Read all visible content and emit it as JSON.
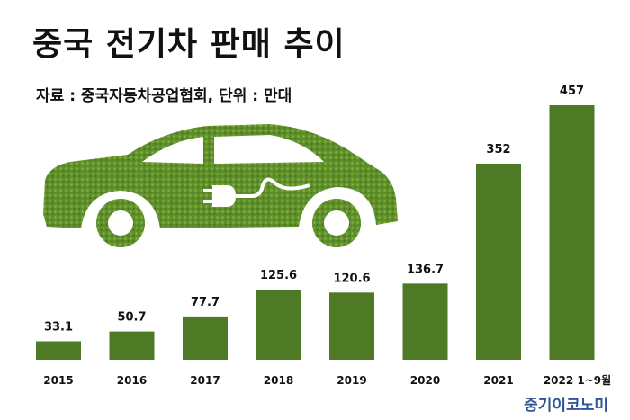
{
  "header": {
    "title": "중국 전기차 판매 추이",
    "source": "자료 : 중국자동차공업협회, 단위 : 만대"
  },
  "brand": "중기이코노미",
  "illustration": {
    "icon": "green-electric-car-icon",
    "color": "#5e8f2a"
  },
  "colors": {
    "bar": "#4e7a25"
  },
  "chart_data": {
    "type": "bar",
    "categories": [
      "2015",
      "2016",
      "2017",
      "2018",
      "2019",
      "2020",
      "2021",
      "2022 1~9월"
    ],
    "values": [
      33.1,
      50.7,
      77.7,
      125.6,
      120.6,
      136.7,
      352,
      457
    ],
    "value_labels": [
      "33.1",
      "50.7",
      "77.7",
      "125.6",
      "120.6",
      "136.7",
      "352",
      "457"
    ],
    "title": "중국 전기차 판매 추이",
    "xlabel": "",
    "ylabel": "",
    "ylim": [
      0,
      457
    ],
    "grid": false,
    "legend": "none"
  }
}
